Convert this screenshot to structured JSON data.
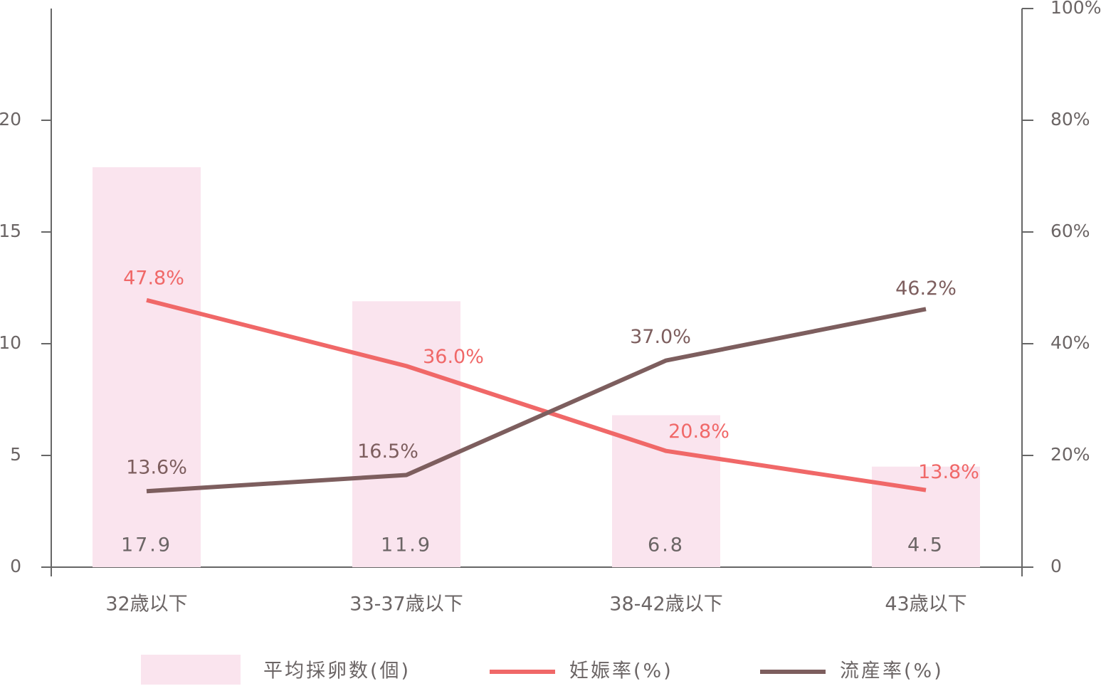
{
  "chart_data": {
    "type": "bar",
    "categories": [
      "32歳以下",
      "33-37歳以下",
      "38-42歳以下",
      "43歳以下"
    ],
    "series": [
      {
        "name": "平均採卵数(個)",
        "type": "bar",
        "color": "#fae4ee",
        "values": [
          17.9,
          11.9,
          6.8,
          4.5
        ]
      },
      {
        "name": "妊娠率(%)",
        "type": "line",
        "axis": "y2",
        "color": "#f06868",
        "values": [
          47.8,
          36.0,
          20.8,
          13.8
        ],
        "value_labels": [
          "47.8%",
          "36.0%",
          "20.8%",
          "13.8%"
        ]
      },
      {
        "name": "流産率(%)",
        "type": "line",
        "axis": "y2",
        "color": "#7d5e5e",
        "values": [
          13.6,
          16.5,
          37.0,
          46.2
        ],
        "value_labels": [
          "13.6%",
          "16.5%",
          "37.0%",
          "46.2%"
        ]
      }
    ],
    "ylim": [
      0,
      25
    ],
    "yticks": [
      0,
      5,
      10,
      15,
      20
    ],
    "y2lim": [
      0,
      100
    ],
    "y2ticks": [
      0,
      {
        "value": 20,
        "label": "20%"
      },
      {
        "value": 40,
        "label": "40%"
      },
      {
        "value": 60,
        "label": "60%"
      },
      {
        "value": 80,
        "label": "80%"
      },
      {
        "value": 100,
        "label": "100%"
      }
    ],
    "legend": "bottom"
  }
}
